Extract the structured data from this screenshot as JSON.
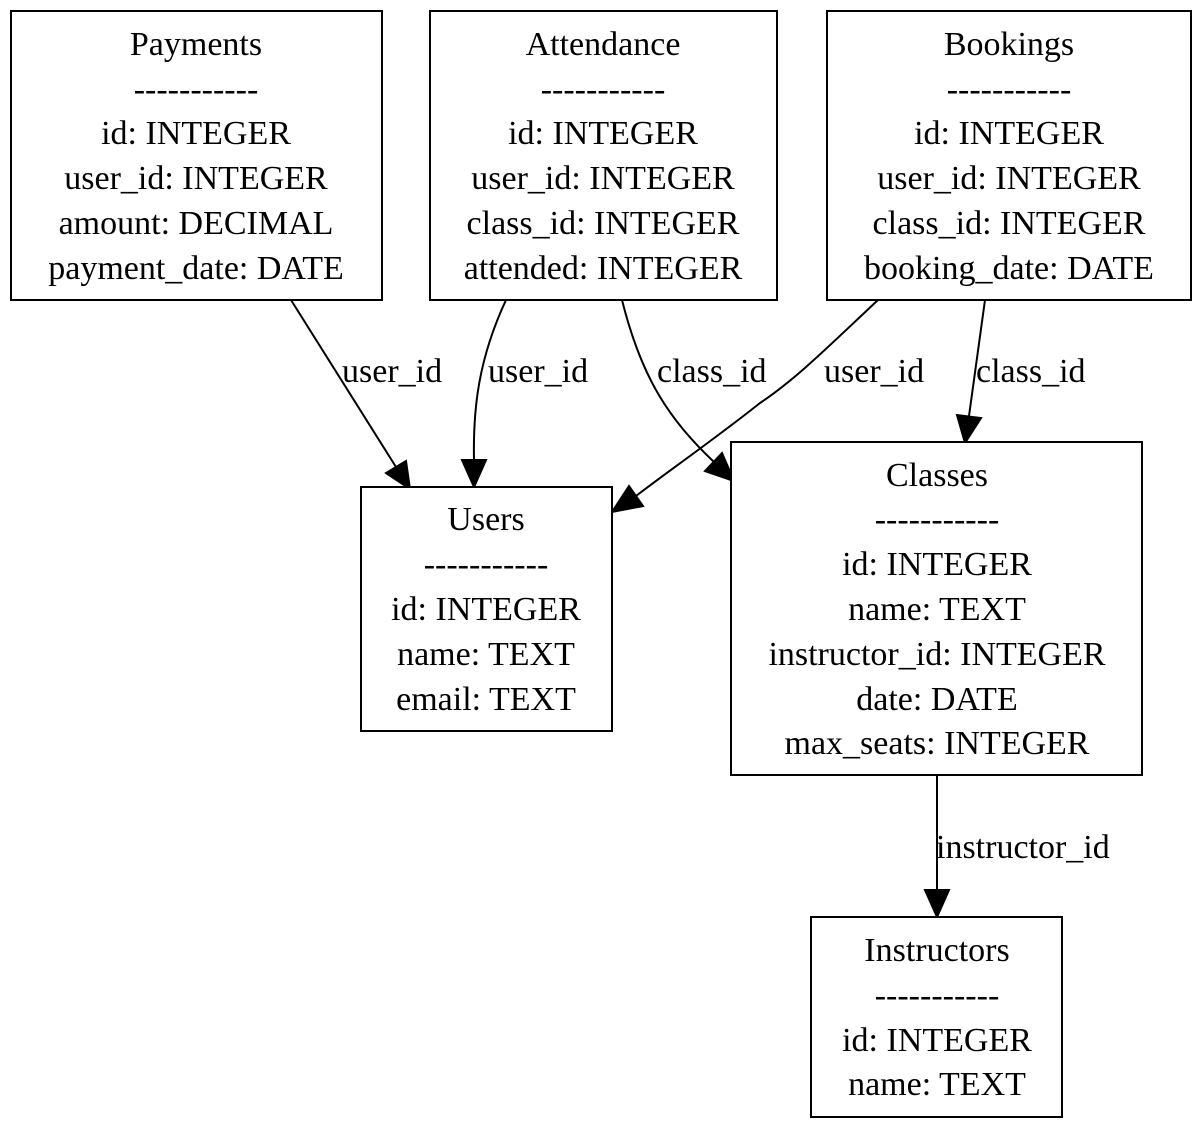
{
  "separator": "-----------",
  "tables": {
    "payments": {
      "name": "Payments",
      "fields": [
        "id: INTEGER",
        "user_id: INTEGER",
        "amount: DECIMAL",
        "payment_date: DATE"
      ]
    },
    "attendance": {
      "name": "Attendance",
      "fields": [
        "id: INTEGER",
        "user_id: INTEGER",
        "class_id: INTEGER",
        "attended: INTEGER"
      ]
    },
    "bookings": {
      "name": "Bookings",
      "fields": [
        "id: INTEGER",
        "user_id: INTEGER",
        "class_id: INTEGER",
        "booking_date: DATE"
      ]
    },
    "users": {
      "name": "Users",
      "fields": [
        "id: INTEGER",
        "name: TEXT",
        "email: TEXT"
      ]
    },
    "classes": {
      "name": "Classes",
      "fields": [
        "id: INTEGER",
        "name: TEXT",
        "instructor_id: INTEGER",
        "date: DATE",
        "max_seats: INTEGER"
      ]
    },
    "instructors": {
      "name": "Instructors",
      "fields": [
        "id: INTEGER",
        "name: TEXT"
      ]
    }
  },
  "relationships": [
    {
      "id": "payments-users",
      "from": "Payments",
      "to": "Users",
      "label": "user_id"
    },
    {
      "id": "attendance-users",
      "from": "Attendance",
      "to": "Users",
      "label": "user_id"
    },
    {
      "id": "attendance-classes",
      "from": "Attendance",
      "to": "Classes",
      "label": "class_id"
    },
    {
      "id": "bookings-users",
      "from": "Bookings",
      "to": "Users",
      "label": "user_id"
    },
    {
      "id": "bookings-classes",
      "from": "Bookings",
      "to": "Classes",
      "label": "class_id"
    },
    {
      "id": "classes-instructors",
      "from": "Classes",
      "to": "Instructors",
      "label": "instructor_id"
    }
  ]
}
